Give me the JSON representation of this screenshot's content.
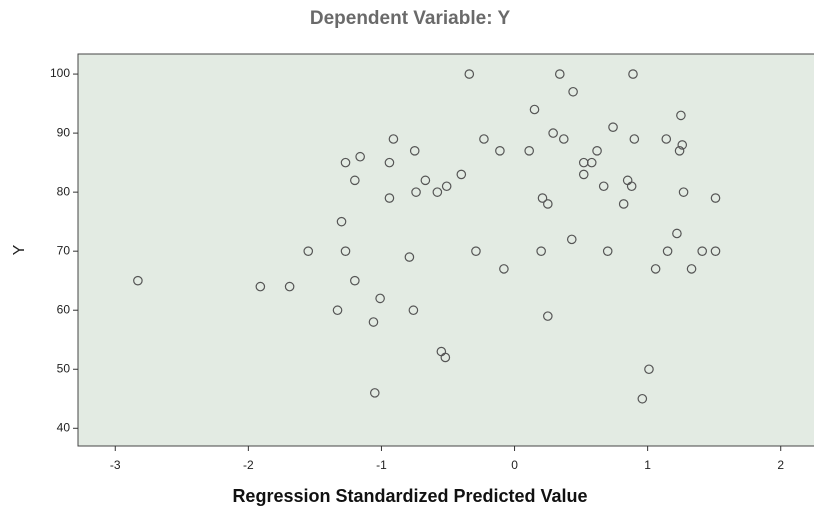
{
  "chart_data": {
    "type": "scatter",
    "title": "Dependent Variable: Y",
    "x_label": "Regression Standardized Predicted Value",
    "y_label": "Y",
    "xlim": [
      -3.28,
      2.25
    ],
    "ylim": [
      37,
      103.4
    ],
    "xticks": [
      -3,
      -2,
      -1,
      0,
      1,
      2
    ],
    "yticks": [
      40,
      50,
      60,
      70,
      80,
      90,
      100
    ],
    "marker_color": "#555555",
    "background": "#e3ebe3",
    "series": [
      {
        "x": [
          -2.83,
          -1.91,
          -1.69,
          -1.55,
          -1.33,
          -1.3,
          -1.27,
          -1.27,
          -1.2,
          -1.2,
          -1.16,
          -1.06,
          -1.05,
          -1.01,
          -0.94,
          -0.94,
          -0.91,
          -0.79,
          -0.76,
          -0.75,
          -0.74,
          -0.67,
          -0.58,
          -0.55,
          -0.52,
          -0.51,
          -0.4,
          -0.34,
          -0.29,
          -0.23,
          -0.11,
          -0.08,
          0.11,
          0.15,
          0.2,
          0.21,
          0.25,
          0.25,
          0.29,
          0.34,
          0.37,
          0.43,
          0.44,
          0.52,
          0.52,
          0.58,
          0.62,
          0.67,
          0.7,
          0.74,
          0.82,
          0.85,
          0.88,
          0.89,
          0.9,
          1.01,
          0.96,
          1.06,
          1.14,
          1.15,
          1.22,
          1.24,
          1.25,
          1.26,
          1.27,
          1.33,
          1.41,
          1.51,
          1.51
        ],
        "values": [
          65,
          64,
          64,
          70,
          60,
          75,
          85,
          70,
          82,
          65,
          86,
          58,
          46,
          62,
          79,
          85,
          89,
          69,
          60,
          87,
          80,
          82,
          80,
          53,
          52,
          81,
          83,
          100,
          70,
          89,
          87,
          67,
          87,
          94,
          70,
          79,
          59,
          78,
          90,
          100,
          89,
          72,
          97,
          85,
          83,
          85,
          87,
          81,
          70,
          91,
          78,
          82,
          81,
          100,
          89,
          50,
          45,
          67,
          89,
          70,
          73,
          87,
          93,
          88,
          80,
          67,
          70,
          79,
          70
        ]
      }
    ]
  }
}
